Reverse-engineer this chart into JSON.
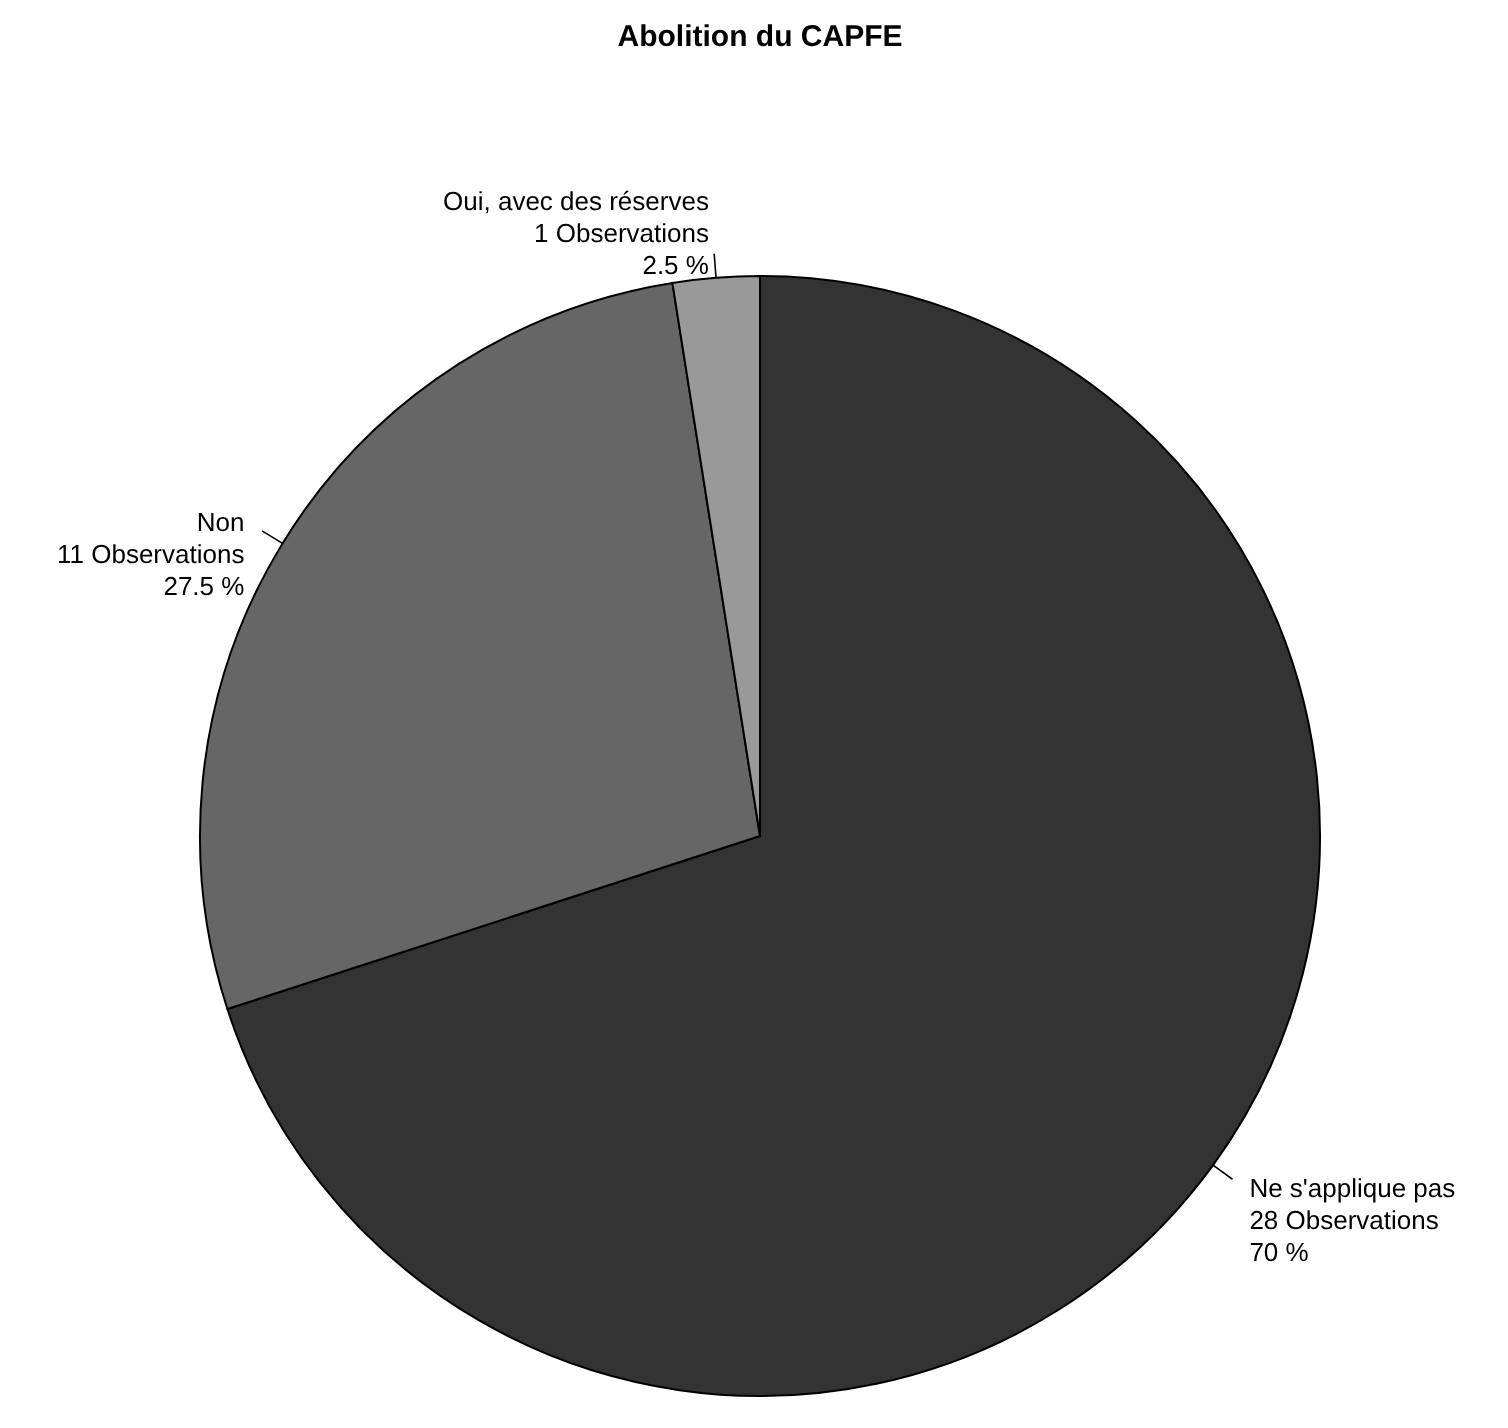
{
  "chart_data": {
    "type": "pie",
    "title": "Abolition du CAPFE",
    "categories": [
      "Ne s'applique pas",
      "Non",
      "Oui, avec des réserves"
    ],
    "values": [
      28,
      11,
      1
    ],
    "colors": [
      "#333333",
      "#666666",
      "#999999"
    ],
    "value_labels": [
      "28  Observations\n70  %",
      "11  Observations\n27.5  %",
      "1  Observations\n2.5  %"
    ]
  }
}
